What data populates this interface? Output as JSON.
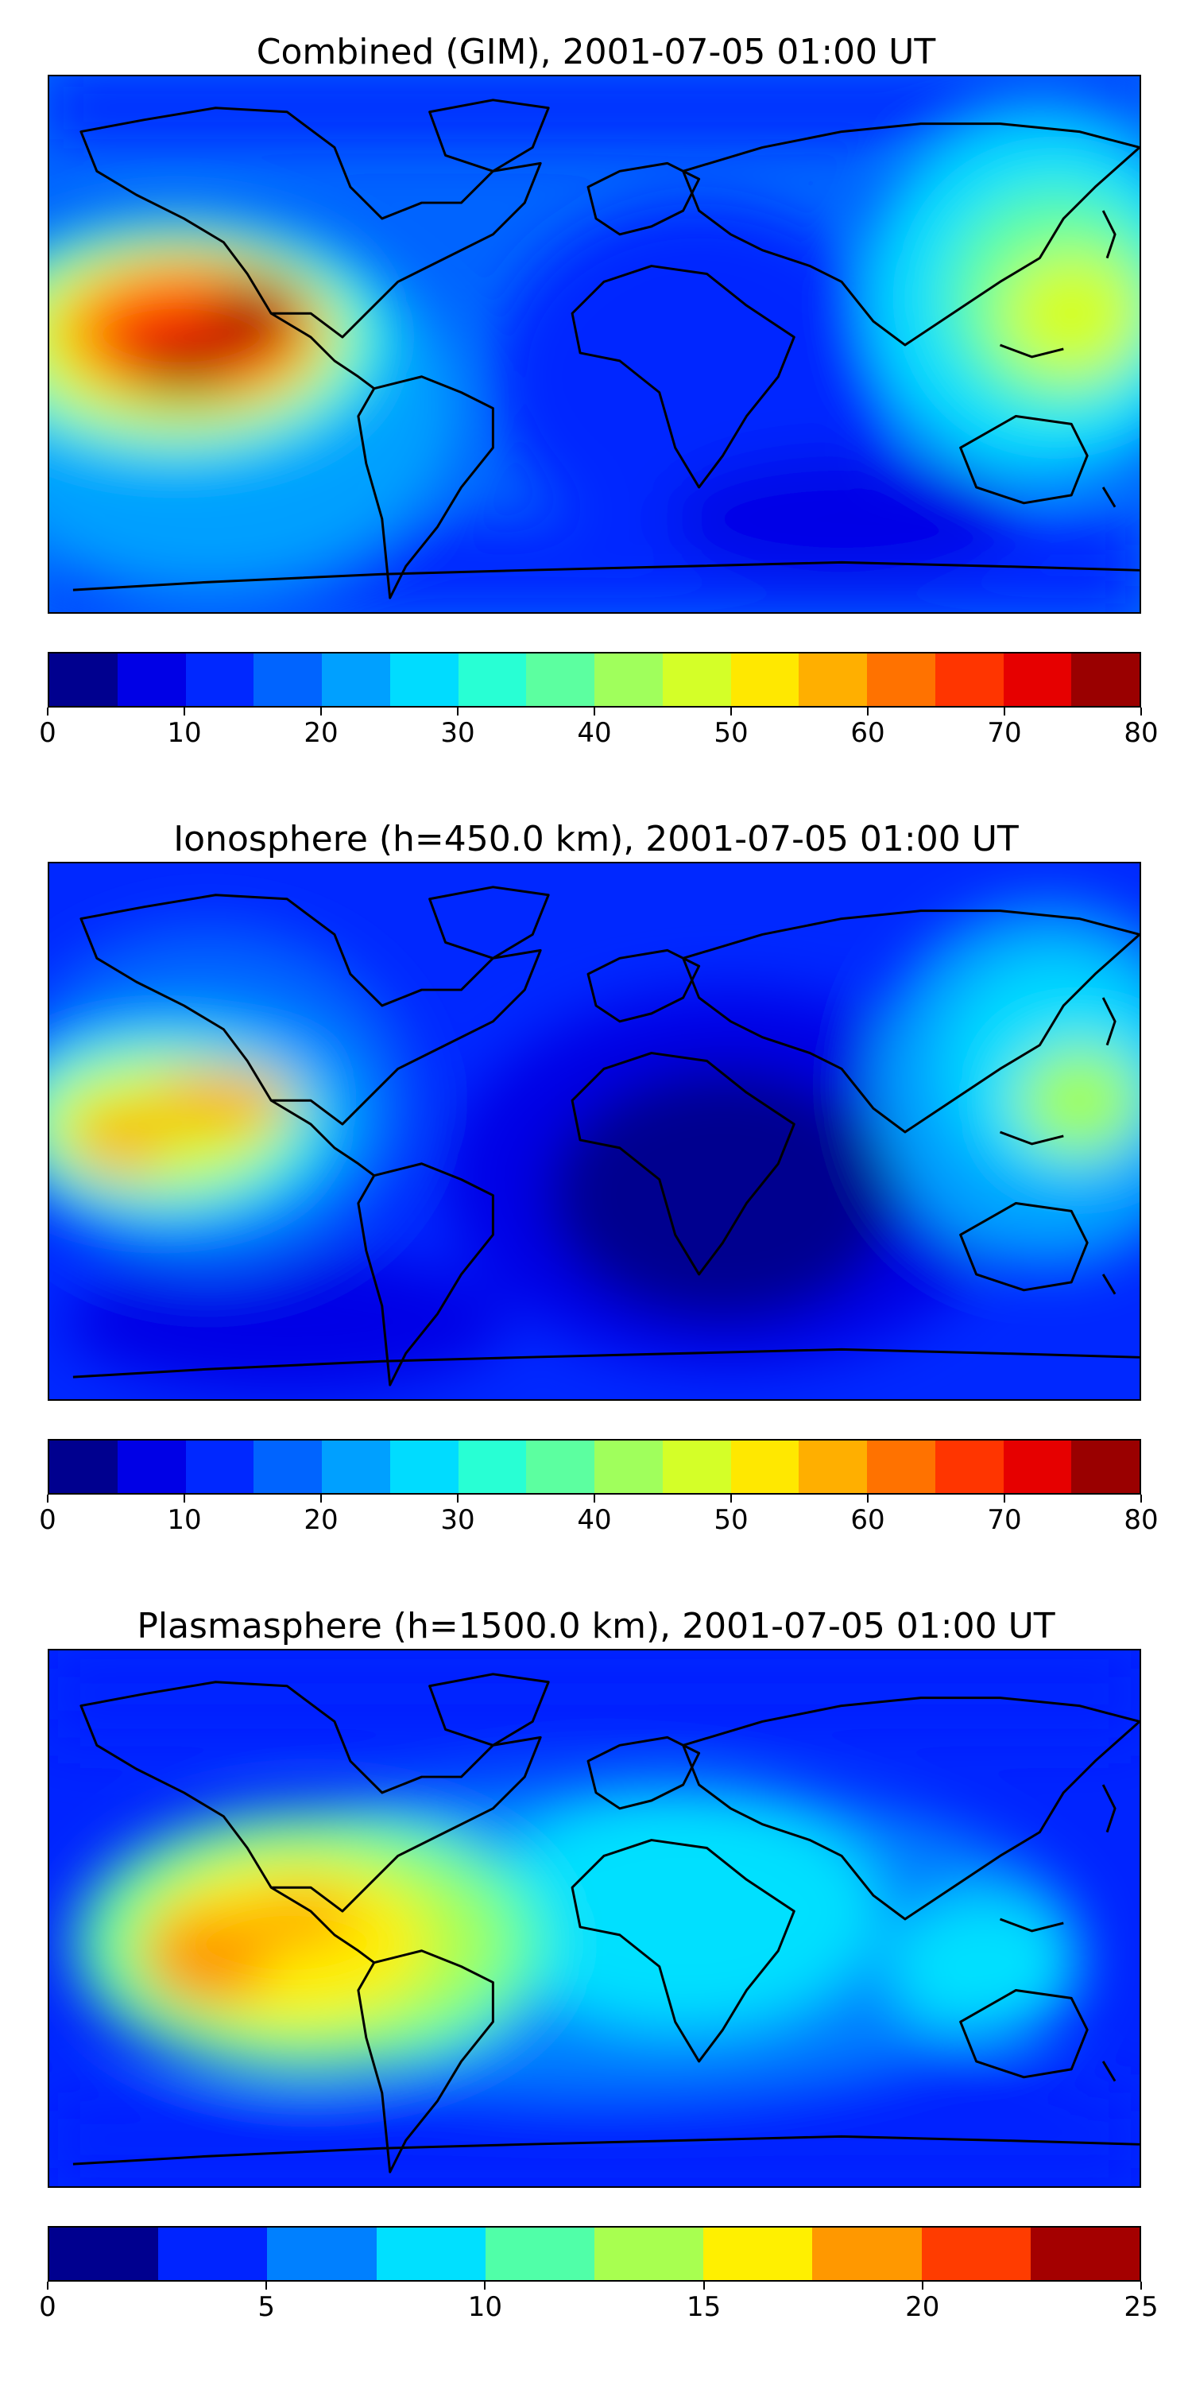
{
  "panels": [
    {
      "title": "Combined (GIM), 2001-07-05 01:00 UT",
      "colorbar": {
        "min": 0,
        "max": 80,
        "tick_labels": [
          "0",
          "10",
          "20",
          "30",
          "40",
          "50",
          "60",
          "70",
          "80"
        ],
        "colors": [
          "#00008f",
          "#0000e6",
          "#0028ff",
          "#0064ff",
          "#00a0ff",
          "#00dcff",
          "#28ffd4",
          "#5cffa0",
          "#a0ff5c",
          "#d4ff28",
          "#ffe800",
          "#ffaf00",
          "#ff7200",
          "#ff3500",
          "#e60000",
          "#9a0000"
        ]
      }
    },
    {
      "title": "Ionosphere  (h=450.0 km), 2001-07-05 01:00 UT",
      "colorbar": {
        "min": 0,
        "max": 80,
        "tick_labels": [
          "0",
          "10",
          "20",
          "30",
          "40",
          "50",
          "60",
          "70",
          "80"
        ],
        "colors": [
          "#00008f",
          "#0000e6",
          "#0028ff",
          "#0064ff",
          "#00a0ff",
          "#00dcff",
          "#28ffd4",
          "#5cffa0",
          "#a0ff5c",
          "#d4ff28",
          "#ffe800",
          "#ffaf00",
          "#ff7200",
          "#ff3500",
          "#e60000",
          "#9a0000"
        ]
      }
    },
    {
      "title": "Plasmasphere (h=1500.0 km), 2001-07-05 01:00 UT",
      "colorbar": {
        "min": 0,
        "max": 25,
        "tick_labels": [
          "0",
          "5",
          "10",
          "15",
          "20",
          "25"
        ],
        "colors": [
          "#00008f",
          "#0024ff",
          "#0080ff",
          "#00e0ff",
          "#50ffa8",
          "#a8ff50",
          "#fff000",
          "#ff9800",
          "#ff3c00",
          "#a40000"
        ]
      }
    }
  ]
}
